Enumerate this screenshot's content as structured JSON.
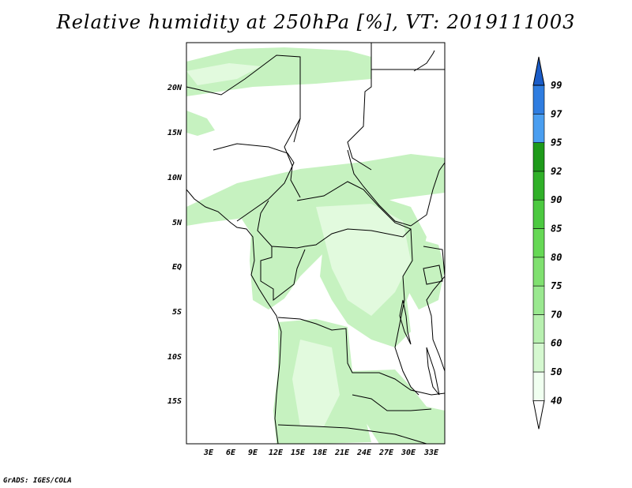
{
  "title": "Relative humidity at 250hPa [%], VT: 2019111003",
  "credit": "GrADS: IGES/COLA",
  "map": {
    "lat_labels": [
      "20N",
      "15N",
      "10N",
      "5N",
      "EQ",
      "5S",
      "10S",
      "15S"
    ],
    "lon_labels": [
      "3E",
      "6E",
      "9E",
      "12E",
      "15E",
      "18E",
      "21E",
      "24E",
      "27E",
      "30E",
      "33E"
    ]
  },
  "colorbar": {
    "levels": [
      "40",
      "50",
      "60",
      "70",
      "75",
      "80",
      "85",
      "90",
      "92",
      "95",
      "97",
      "99"
    ],
    "colors": [
      "#f0fff0",
      "#d5f8d0",
      "#b8f0b0",
      "#9ae890",
      "#80e070",
      "#66d855",
      "#4cc940",
      "#30b028",
      "#1e9a1a",
      "#4a9ef0",
      "#2f7de0",
      "#1a5cc8"
    ]
  }
}
